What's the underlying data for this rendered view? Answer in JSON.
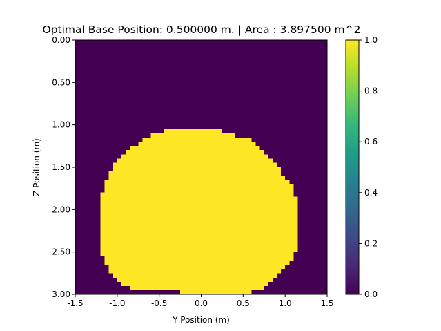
{
  "chart_data": {
    "type": "heatmap",
    "title": "Optimal Base Position: 0.500000 m. | Area : 3.897500 m^2",
    "xlabel": "Y Position (m)",
    "ylabel": "Z Position (m)",
    "xlim": [
      -1.5,
      1.5
    ],
    "ylim": [
      0.0,
      3.0
    ],
    "y_inverted": true,
    "x_ticks": [
      "-1.5",
      "-1.0",
      "-0.5",
      "0.0",
      "0.5",
      "1.0",
      "1.5"
    ],
    "x_tick_values": [
      -1.5,
      -1.0,
      -0.5,
      0.0,
      0.5,
      1.0,
      1.5
    ],
    "y_ticks": [
      "0.00",
      "0.50",
      "1.00",
      "1.50",
      "2.00",
      "2.50",
      "3.00"
    ],
    "y_tick_values": [
      0.0,
      0.5,
      1.0,
      1.5,
      2.0,
      2.5,
      3.0
    ],
    "colormap": "viridis",
    "colorbar": {
      "range": [
        0.0,
        1.0
      ],
      "ticks": [
        "0.0",
        "0.2",
        "0.4",
        "0.6",
        "0.8",
        "1.0"
      ],
      "tick_values": [
        0.0,
        0.2,
        0.4,
        0.6,
        0.8,
        1.0
      ]
    },
    "background_value": 0,
    "region_value": 1,
    "region_rows": [
      {
        "z": [
          1.05,
          1.1
        ],
        "y": [
          -0.45,
          0.25
        ]
      },
      {
        "z": [
          1.1,
          1.15
        ],
        "y": [
          -0.6,
          0.4
        ]
      },
      {
        "z": [
          1.15,
          1.2
        ],
        "y": [
          -0.7,
          0.6
        ]
      },
      {
        "z": [
          1.2,
          1.25
        ],
        "y": [
          -0.75,
          0.65
        ]
      },
      {
        "z": [
          1.25,
          1.3
        ],
        "y": [
          -0.85,
          0.7
        ]
      },
      {
        "z": [
          1.3,
          1.35
        ],
        "y": [
          -0.9,
          0.75
        ]
      },
      {
        "z": [
          1.35,
          1.4
        ],
        "y": [
          -0.95,
          0.8
        ]
      },
      {
        "z": [
          1.4,
          1.45
        ],
        "y": [
          -1.0,
          0.85
        ]
      },
      {
        "z": [
          1.45,
          1.5
        ],
        "y": [
          -1.05,
          0.9
        ]
      },
      {
        "z": [
          1.5,
          1.55
        ],
        "y": [
          -1.05,
          0.95
        ]
      },
      {
        "z": [
          1.55,
          1.6
        ],
        "y": [
          -1.1,
          0.95
        ]
      },
      {
        "z": [
          1.6,
          1.65
        ],
        "y": [
          -1.1,
          1.0
        ]
      },
      {
        "z": [
          1.65,
          1.7
        ],
        "y": [
          -1.15,
          1.05
        ]
      },
      {
        "z": [
          1.7,
          1.75
        ],
        "y": [
          -1.15,
          1.1
        ]
      },
      {
        "z": [
          1.75,
          1.8
        ],
        "y": [
          -1.15,
          1.1
        ]
      },
      {
        "z": [
          1.8,
          1.85
        ],
        "y": [
          -1.2,
          1.1
        ]
      },
      {
        "z": [
          1.85,
          1.9
        ],
        "y": [
          -1.2,
          1.15
        ]
      },
      {
        "z": [
          1.9,
          1.95
        ],
        "y": [
          -1.2,
          1.15
        ]
      },
      {
        "z": [
          1.95,
          2.5
        ],
        "y": [
          -1.2,
          1.15
        ]
      },
      {
        "z": [
          2.5,
          2.55
        ],
        "y": [
          -1.2,
          1.1
        ]
      },
      {
        "z": [
          2.55,
          2.6
        ],
        "y": [
          -1.15,
          1.1
        ]
      },
      {
        "z": [
          2.6,
          2.65
        ],
        "y": [
          -1.15,
          1.05
        ]
      },
      {
        "z": [
          2.65,
          2.7
        ],
        "y": [
          -1.1,
          1.0
        ]
      },
      {
        "z": [
          2.7,
          2.75
        ],
        "y": [
          -1.1,
          0.95
        ]
      },
      {
        "z": [
          2.75,
          2.8
        ],
        "y": [
          -1.05,
          0.9
        ]
      },
      {
        "z": [
          2.8,
          2.85
        ],
        "y": [
          -1.0,
          0.85
        ]
      },
      {
        "z": [
          2.85,
          2.9
        ],
        "y": [
          -0.95,
          0.8
        ]
      },
      {
        "z": [
          2.9,
          2.95
        ],
        "y": [
          -0.85,
          0.75
        ]
      },
      {
        "z": [
          2.95,
          3.0
        ],
        "y": [
          -0.25,
          0.6
        ]
      }
    ]
  }
}
